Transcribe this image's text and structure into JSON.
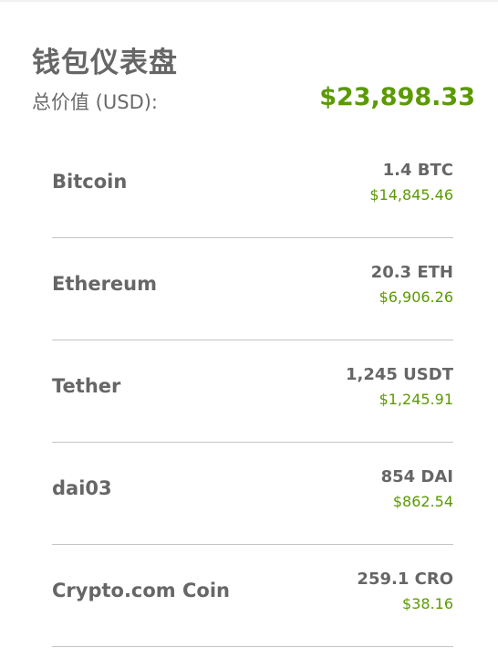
{
  "header": {
    "title": "钱包仪表盘"
  },
  "summary": {
    "total_label": "总价值 (USD):",
    "total_value": "$23,898.33"
  },
  "assets": [
    {
      "name": "Bitcoin",
      "amount": "1.4 BTC",
      "usd": "$14,845.46"
    },
    {
      "name": "Ethereum",
      "amount": "20.3 ETH",
      "usd": "$6,906.26"
    },
    {
      "name": "Tether",
      "amount": "1,245 USDT",
      "usd": "$1,245.91"
    },
    {
      "name": "dai03",
      "amount": "854 DAI",
      "usd": "$862.54"
    },
    {
      "name": "Crypto.com Coin",
      "amount": "259.1 CRO",
      "usd": "$38.16"
    }
  ],
  "colors": {
    "accent_green": "#5b9a00",
    "text_gray": "#666666",
    "divider": "#c4c4c4"
  }
}
